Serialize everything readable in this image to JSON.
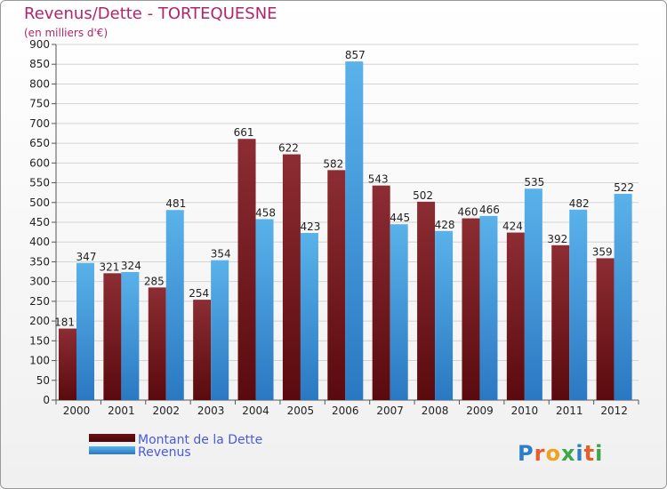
{
  "chart_data": {
    "type": "bar",
    "title": "Revenus/Dette - TORTEQUESNE",
    "subtitle": "(en milliers d'€)",
    "categories": [
      "2000",
      "2001",
      "2002",
      "2003",
      "2004",
      "2005",
      "2006",
      "2007",
      "2008",
      "2009",
      "2010",
      "2011",
      "2012"
    ],
    "series": [
      {
        "name": "Montant de la Dette",
        "values": [
          181,
          321,
          285,
          254,
          661,
          622,
          582,
          543,
          502,
          460,
          424,
          392,
          359
        ]
      },
      {
        "name": "Revenus",
        "values": [
          347,
          324,
          481,
          354,
          458,
          423,
          857,
          445,
          428,
          466,
          535,
          482,
          522
        ]
      }
    ],
    "ylim": [
      0,
      900
    ],
    "ytick_step": 50,
    "grid": true,
    "legend_position": "bottom-left",
    "xlabel": "",
    "ylabel": "",
    "colors": {
      "debt_dark": "#5a0a0e",
      "debt_light": "#8c2d33",
      "rev_dark": "#2a78c2",
      "rev_light": "#5ab2ea",
      "grid": "#d4d4d4",
      "title": "#b0256a",
      "legend_text": "#4a59e0"
    }
  },
  "watermark": "Proxiti"
}
